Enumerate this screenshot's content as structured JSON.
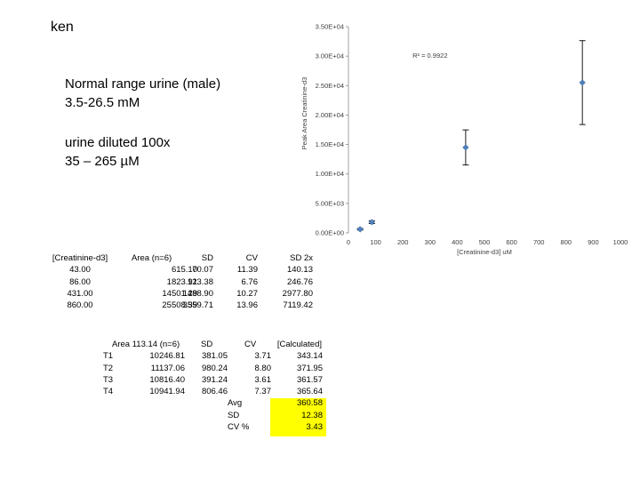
{
  "slide": {
    "title": "ken",
    "normal_range": {
      "line1": "Normal range urine (male)",
      "line2": "3.5-26.5 mM"
    },
    "dilution": {
      "line1": "urine diluted 100x",
      "line2": "35 – 265 µM"
    }
  },
  "chart_data": {
    "type": "scatter",
    "xlabel": "[Creatinine-d3] uM",
    "ylabel": "Peak Area Creatinine-d3",
    "xlim": [
      0,
      1000
    ],
    "ylim": [
      0,
      35000
    ],
    "x_ticks": [
      "0",
      "100",
      "200",
      "300",
      "400",
      "500",
      "600",
      "700",
      "800",
      "900",
      "1000"
    ],
    "y_ticks": [
      "0.00E+00",
      "5.00E+03",
      "1.00E+04",
      "1.50E+04",
      "2.00E+04",
      "2.50E+04",
      "3.00E+04",
      "3.50E+04"
    ],
    "annotation": "R² = 0.9922",
    "x": [
      43,
      86,
      431,
      860
    ],
    "y": [
      615.1,
      1823.91,
      14501.29,
      25508.39
    ],
    "error": [
      140.13,
      246.76,
      2977.8,
      7119.42
    ],
    "marker_color": "#4f81bd",
    "grid": false
  },
  "calibration_table": {
    "headers": [
      "[Creatinine-d3]",
      "Area (n=6)",
      "SD",
      "CV",
      "SD 2x"
    ],
    "rows": [
      [
        "43.00",
        "615.10",
        "70.07",
        "11.39",
        "140.13"
      ],
      [
        "86.00",
        "1823.91",
        "123.38",
        "6.76",
        "246.76"
      ],
      [
        "431.00",
        "14501.29",
        "1488.90",
        "10.27",
        "2977.80"
      ],
      [
        "860.00",
        "25508.39",
        "3559.71",
        "13.96",
        "7119.42"
      ]
    ]
  },
  "sample_table": {
    "headers": [
      "Area 113.14 (n=6)",
      "SD",
      "CV",
      "[Calculated]"
    ],
    "rows": [
      [
        "T1",
        "10246.81",
        "381.05",
        "3.71",
        "343.14"
      ],
      [
        "T2",
        "11137.06",
        "980.24",
        "8.80",
        "371.95"
      ],
      [
        "T3",
        "10816.40",
        "391.24",
        "3.61",
        "361.57"
      ],
      [
        "T4",
        "10941.94",
        "806.46",
        "7.37",
        "365.64"
      ]
    ],
    "summary": [
      {
        "label": "Avg",
        "value": "360.58"
      },
      {
        "label": "SD",
        "value": "12.38"
      },
      {
        "label": "CV %",
        "value": "3.43"
      }
    ],
    "highlight_color": "#ffff00"
  }
}
